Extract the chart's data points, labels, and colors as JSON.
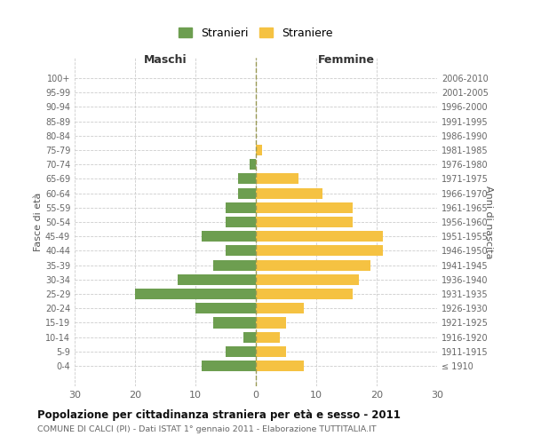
{
  "age_groups": [
    "100+",
    "95-99",
    "90-94",
    "85-89",
    "80-84",
    "75-79",
    "70-74",
    "65-69",
    "60-64",
    "55-59",
    "50-54",
    "45-49",
    "40-44",
    "35-39",
    "30-34",
    "25-29",
    "20-24",
    "15-19",
    "10-14",
    "5-9",
    "0-4"
  ],
  "birth_years": [
    "≤ 1910",
    "1911-1915",
    "1916-1920",
    "1921-1925",
    "1926-1930",
    "1931-1935",
    "1936-1940",
    "1941-1945",
    "1946-1950",
    "1951-1955",
    "1956-1960",
    "1961-1965",
    "1966-1970",
    "1971-1975",
    "1976-1980",
    "1981-1985",
    "1986-1990",
    "1991-1995",
    "1996-2000",
    "2001-2005",
    "2006-2010"
  ],
  "maschi": [
    0,
    0,
    0,
    0,
    0,
    0,
    1,
    3,
    3,
    5,
    5,
    9,
    5,
    7,
    13,
    20,
    10,
    7,
    2,
    5,
    9
  ],
  "femmine": [
    0,
    0,
    0,
    0,
    0,
    1,
    0,
    7,
    11,
    16,
    16,
    21,
    21,
    19,
    17,
    16,
    8,
    5,
    4,
    5,
    8
  ],
  "male_color": "#6d9e50",
  "female_color": "#f5c242",
  "background_color": "#ffffff",
  "grid_color": "#cccccc",
  "title": "Popolazione per cittadinanza straniera per età e sesso - 2011",
  "subtitle": "COMUNE DI CALCI (PI) - Dati ISTAT 1° gennaio 2011 - Elaborazione TUTTITALIA.IT",
  "xlabel_left": "Maschi",
  "xlabel_right": "Femmine",
  "ylabel_left": "Fasce di età",
  "ylabel_right": "Anni di nascita",
  "legend_male": "Stranieri",
  "legend_female": "Straniere",
  "xlim": 30,
  "bar_height": 0.75
}
